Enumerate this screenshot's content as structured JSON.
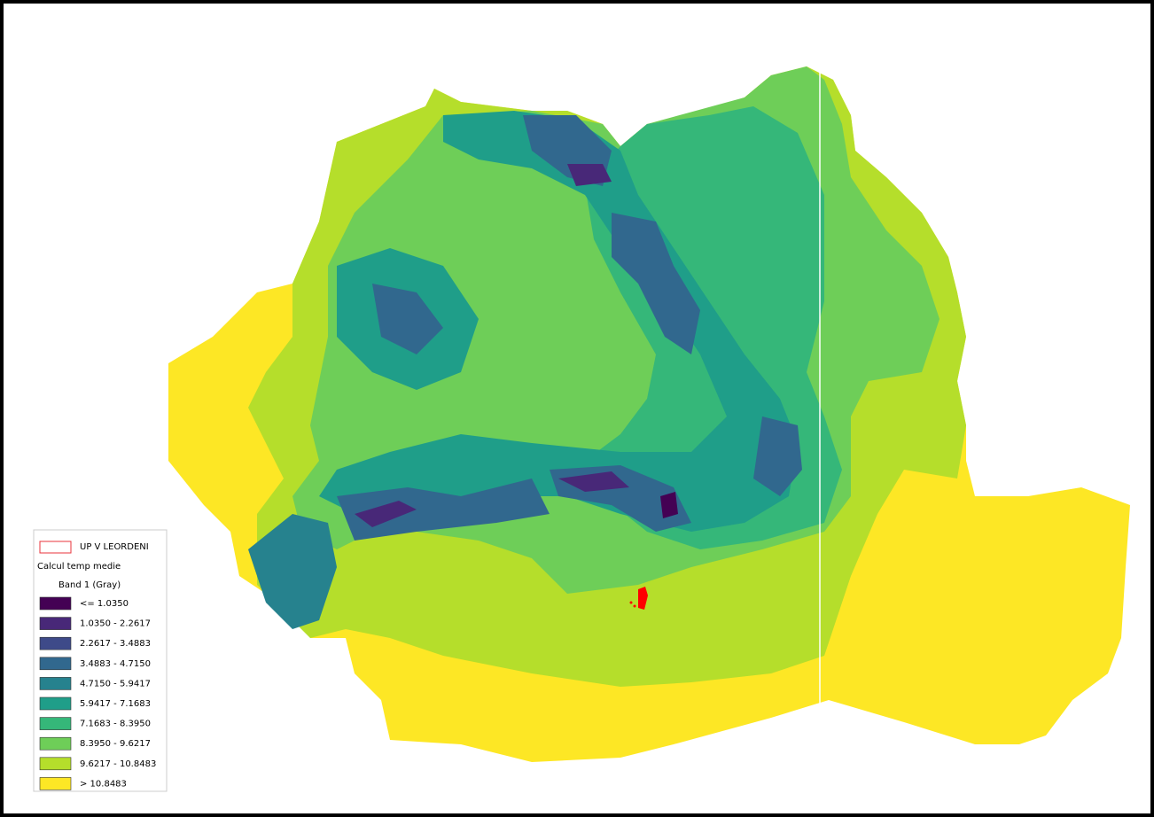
{
  "legend": {
    "layers": [
      {
        "label": "UP V LEORDENI",
        "outline": "#e8333b"
      }
    ],
    "raster_title": "Calcul temp medie",
    "band": "Band 1 (Gray)",
    "classes": [
      {
        "label": "<= 1.0350",
        "color": "#440154"
      },
      {
        "label": "1.0350 - 2.2617",
        "color": "#482878"
      },
      {
        "label": "2.2617 - 3.4883",
        "color": "#3e4a89"
      },
      {
        "label": "3.4883 - 4.7150",
        "color": "#31688e"
      },
      {
        "label": "4.7150 - 5.9417",
        "color": "#26828e"
      },
      {
        "label": "5.9417 - 7.1683",
        "color": "#1f9e89"
      },
      {
        "label": "7.1683 - 8.3950",
        "color": "#35b779"
      },
      {
        "label": "8.3950 - 9.6217",
        "color": "#6ece58"
      },
      {
        "label": "9.6217 - 10.8483",
        "color": "#b5de2b"
      },
      {
        "label": "> 10.8483",
        "color": "#fde725"
      }
    ]
  }
}
